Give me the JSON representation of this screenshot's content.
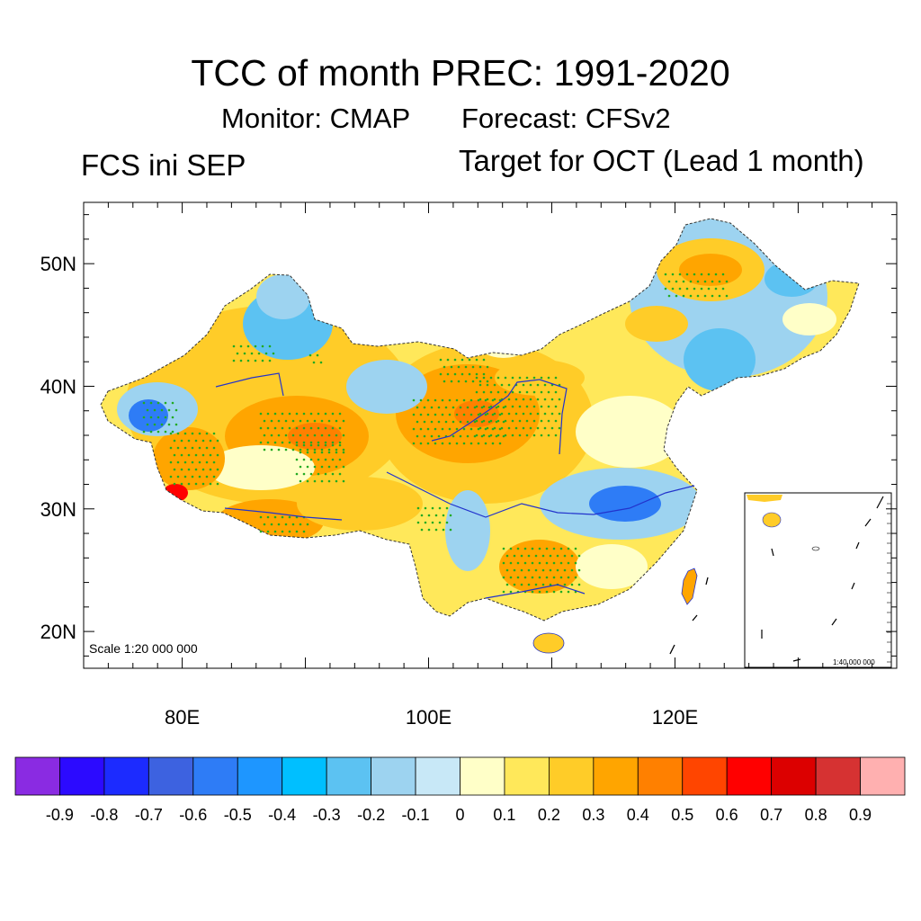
{
  "title": "TCC of month PREC: 1991-2020",
  "subtitle_monitor": "Monitor: CMAP",
  "subtitle_forecast": "Forecast: CFSv2",
  "left_string": "FCS ini SEP",
  "right_string": "Target for OCT (Lead 1 month)",
  "scale_main": "Scale 1:20 000 000",
  "scale_inset": "1:40 000 000",
  "map": {
    "lon_range": [
      72,
      138
    ],
    "lat_range": [
      17,
      55
    ],
    "lat_ticks": [
      {
        "value": 20,
        "label": "20N"
      },
      {
        "value": 30,
        "label": "30N"
      },
      {
        "value": 40,
        "label": "40N"
      },
      {
        "value": 50,
        "label": "50N"
      }
    ],
    "lon_ticks": [
      {
        "value": 80,
        "label": "80E"
      },
      {
        "value": 100,
        "label": "100E"
      },
      {
        "value": 120,
        "label": "120E"
      }
    ],
    "colors": {
      "stipple": "#22aa22",
      "river": "#2233cc",
      "border": "#333333"
    }
  },
  "colorbar": {
    "colors": [
      "#8a2be2",
      "#2c0aff",
      "#1c2bff",
      "#3d62e0",
      "#2e7cf6",
      "#1e96ff",
      "#00bfff",
      "#5cc2f2",
      "#9dd3f0",
      "#c8e8f7",
      "#ffffc8",
      "#ffe85a",
      "#ffcc28",
      "#ffa500",
      "#ff8000",
      "#ff4500",
      "#ff0000",
      "#dc0000",
      "#d63232",
      "#ffb0b0"
    ],
    "labels": [
      "-0.9",
      "-0.8",
      "-0.7",
      "-0.6",
      "-0.5",
      "-0.4",
      "-0.3",
      "-0.2",
      "-0.1",
      "0",
      "0.1",
      "0.2",
      "0.3",
      "0.4",
      "0.5",
      "0.6",
      "0.7",
      "0.8",
      "0.9"
    ]
  }
}
